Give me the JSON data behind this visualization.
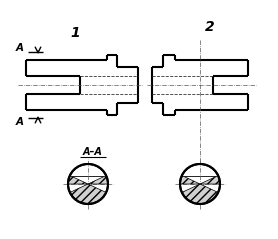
{
  "bg_color": "#ffffff",
  "line_color": "#000000",
  "fig_width": 2.78,
  "fig_height": 2.39,
  "dpi": 100,
  "label1": "1",
  "label2": "2",
  "section_label": "A–A",
  "cut_label": "A"
}
